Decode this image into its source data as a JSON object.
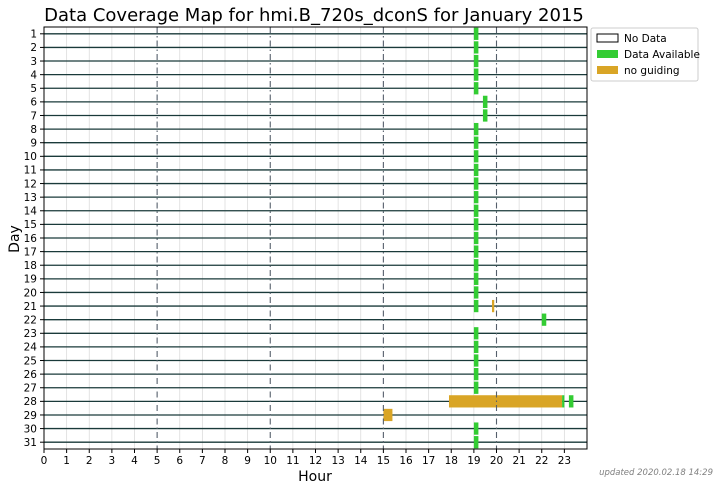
{
  "chart_data": {
    "type": "timeline",
    "title": "Data Coverage Map for hmi.B_720s_dconS for January 2015",
    "xlabel": "Hour",
    "ylabel": "Day",
    "xlim": [
      0,
      24
    ],
    "x_ticks": [
      0,
      1,
      2,
      3,
      4,
      5,
      6,
      7,
      8,
      9,
      10,
      11,
      12,
      13,
      14,
      15,
      16,
      17,
      18,
      19,
      20,
      21,
      22,
      23
    ],
    "dashed_hours": [
      5,
      10,
      15,
      20
    ],
    "days": [
      1,
      2,
      3,
      4,
      5,
      6,
      7,
      8,
      9,
      10,
      11,
      12,
      13,
      14,
      15,
      16,
      17,
      18,
      19,
      20,
      21,
      22,
      23,
      24,
      25,
      26,
      27,
      28,
      29,
      30,
      31
    ],
    "legend": {
      "position": "top-right",
      "entries": [
        {
          "key": "nodata",
          "label": "No Data",
          "color": "#ffffff"
        },
        {
          "key": "available",
          "label": "Data Available",
          "color": "#33cc33"
        },
        {
          "key": "noguiding",
          "label": "no guiding",
          "color": "#d9a526"
        }
      ]
    },
    "row_line_color": "#1a3a3a",
    "segments": [
      {
        "day": 1,
        "start": 19.0,
        "end": 19.2,
        "status": "available"
      },
      {
        "day": 2,
        "start": 19.0,
        "end": 19.2,
        "status": "available"
      },
      {
        "day": 3,
        "start": 19.0,
        "end": 19.2,
        "status": "available"
      },
      {
        "day": 4,
        "start": 19.0,
        "end": 19.2,
        "status": "available"
      },
      {
        "day": 5,
        "start": 19.0,
        "end": 19.2,
        "status": "available"
      },
      {
        "day": 6,
        "start": 19.4,
        "end": 19.6,
        "status": "available"
      },
      {
        "day": 7,
        "start": 19.4,
        "end": 19.6,
        "status": "available"
      },
      {
        "day": 8,
        "start": 19.0,
        "end": 19.2,
        "status": "available"
      },
      {
        "day": 9,
        "start": 19.0,
        "end": 19.2,
        "status": "available"
      },
      {
        "day": 10,
        "start": 19.0,
        "end": 19.2,
        "status": "available"
      },
      {
        "day": 11,
        "start": 19.0,
        "end": 19.2,
        "status": "available"
      },
      {
        "day": 12,
        "start": 19.0,
        "end": 19.2,
        "status": "available"
      },
      {
        "day": 13,
        "start": 19.0,
        "end": 19.2,
        "status": "available"
      },
      {
        "day": 14,
        "start": 19.0,
        "end": 19.2,
        "status": "available"
      },
      {
        "day": 15,
        "start": 19.0,
        "end": 19.2,
        "status": "available"
      },
      {
        "day": 16,
        "start": 19.0,
        "end": 19.2,
        "status": "available"
      },
      {
        "day": 17,
        "start": 19.0,
        "end": 19.2,
        "status": "available"
      },
      {
        "day": 18,
        "start": 19.0,
        "end": 19.2,
        "status": "available"
      },
      {
        "day": 19,
        "start": 19.0,
        "end": 19.2,
        "status": "available"
      },
      {
        "day": 20,
        "start": 19.0,
        "end": 19.2,
        "status": "available"
      },
      {
        "day": 21,
        "start": 19.0,
        "end": 19.2,
        "status": "available"
      },
      {
        "day": 21,
        "start": 19.8,
        "end": 19.9,
        "status": "noguiding"
      },
      {
        "day": 22,
        "start": 22.0,
        "end": 22.2,
        "status": "available"
      },
      {
        "day": 23,
        "start": 19.0,
        "end": 19.2,
        "status": "available"
      },
      {
        "day": 24,
        "start": 19.0,
        "end": 19.2,
        "status": "available"
      },
      {
        "day": 25,
        "start": 19.0,
        "end": 19.2,
        "status": "available"
      },
      {
        "day": 26,
        "start": 19.0,
        "end": 19.2,
        "status": "available"
      },
      {
        "day": 27,
        "start": 19.0,
        "end": 19.2,
        "status": "available"
      },
      {
        "day": 28,
        "start": 17.9,
        "end": 22.9,
        "status": "noguiding"
      },
      {
        "day": 28,
        "start": 22.9,
        "end": 23.0,
        "status": "available"
      },
      {
        "day": 28,
        "start": 23.2,
        "end": 23.4,
        "status": "available"
      },
      {
        "day": 29,
        "start": 15.0,
        "end": 15.4,
        "status": "noguiding"
      },
      {
        "day": 30,
        "start": 19.0,
        "end": 19.2,
        "status": "available"
      },
      {
        "day": 31,
        "start": 19.0,
        "end": 19.2,
        "status": "available"
      }
    ]
  },
  "footer": {
    "updated_text": "updated 2020.02.18 14:29"
  }
}
